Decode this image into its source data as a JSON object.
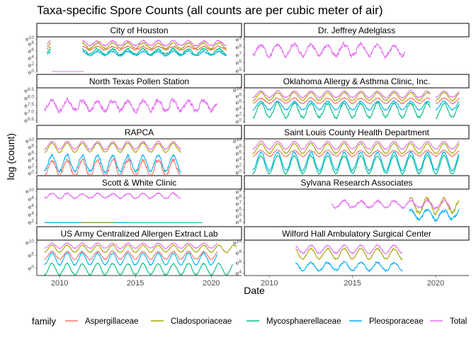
{
  "chart_data": {
    "type": "line",
    "title": "Taxa-specific Spore Counts (all counts are per cubic meter of air)",
    "xlabel": "Date",
    "ylabel": "log (count)",
    "x_range": [
      "2008-07-01",
      "2021-12-31"
    ],
    "x_ticks": [
      "2010",
      "2015",
      "2020"
    ],
    "legend": {
      "title": "family",
      "position": "bottom",
      "entries": [
        {
          "name": "Aspergillaceae",
          "color": "#F8766D"
        },
        {
          "name": "Cladosporiaceae",
          "color": "#A3A500"
        },
        {
          "name": "Mycosphaerellaceae",
          "color": "#00BF7D"
        },
        {
          "name": "Pleosporaceae",
          "color": "#00B0F6"
        },
        {
          "name": "Total",
          "color": "#E76BF3"
        }
      ]
    },
    "series_names": [
      "Aspergillaceae",
      "Cladosporiaceae",
      "Mycosphaerellaceae",
      "Pleosporaceae",
      "Total"
    ],
    "panels": [
      {
        "title": "City of Houston",
        "y_ticks": [
          "e^10",
          "e^8",
          "e^6",
          "e^4",
          "e^2",
          "e^0"
        ],
        "ylim": [
          0,
          10
        ],
        "series": [
          {
            "name": "Total",
            "segments": [
              [
                "2009-03-01",
                "2009-06-01"
              ],
              [
                "2011-07-01",
                "2021-01-01"
              ]
            ],
            "level": 8.2,
            "amp": 0.7,
            "period": 1,
            "noise": 0.4
          },
          {
            "name": "Cladosporiaceae",
            "segments": [
              [
                "2009-03-01",
                "2009-06-01"
              ],
              [
                "2011-07-01",
                "2021-01-01"
              ]
            ],
            "level": 7.5,
            "amp": 0.8,
            "period": 1,
            "noise": 0.4
          },
          {
            "name": "Aspergillaceae",
            "segments": [
              [
                "2009-03-01",
                "2009-06-01"
              ],
              [
                "2011-07-01",
                "2021-01-01"
              ]
            ],
            "level": 6.8,
            "amp": 0.5,
            "period": 1,
            "noise": 0.4
          },
          {
            "name": "Mycosphaerellaceae",
            "segments": [
              [
                "2009-03-01",
                "2009-06-01"
              ],
              [
                "2011-07-01",
                "2021-01-01"
              ]
            ],
            "level": 5.8,
            "amp": 0.8,
            "period": 1,
            "noise": 0.5
          },
          {
            "name": "Pleosporaceae",
            "segments": [
              [
                "2009-03-01",
                "2009-06-01"
              ],
              [
                "2011-07-01",
                "2021-01-01"
              ]
            ],
            "level": 5.3,
            "amp": 0.6,
            "period": 1,
            "noise": 0.4
          },
          {
            "name": "Total",
            "segments": [
              [
                "2009-07-01",
                "2011-08-01"
              ]
            ],
            "level": 0.2,
            "amp": 0,
            "period": 1,
            "noise": 0
          }
        ]
      },
      {
        "title": "Dr. Jeffrey Adelglass",
        "y_ticks": [
          "e^9",
          "e^8",
          "e^7",
          "e^6",
          "e^5"
        ],
        "ylim": [
          4.8,
          9.3
        ],
        "series": [
          {
            "name": "Total",
            "segments": [
              [
                "2009-01-01",
                "2018-03-01"
              ]
            ],
            "level": 7.6,
            "amp": 0.7,
            "period": 1,
            "noise": 0.5
          }
        ]
      },
      {
        "title": "North Texas Pollen Station",
        "y_ticks": [
          "e^8.5",
          "e^8.0",
          "e^7.5",
          "e^7.0",
          "e^6.5"
        ],
        "ylim": [
          6.3,
          8.7
        ],
        "series": [
          {
            "name": "Total",
            "segments": [
              [
                "2009-01-01",
                "2020-06-01"
              ]
            ],
            "level": 7.5,
            "amp": 0.35,
            "period": 1,
            "noise": 0.3
          }
        ]
      },
      {
        "title": "Oklahoma Allergy & Asthma Clinic, Inc.",
        "y_ticks": [
          "e^10",
          "e^8",
          "e^6",
          "e^4",
          "e^2",
          "e^0"
        ],
        "ylim": [
          -0.5,
          10.5
        ],
        "series": [
          {
            "name": "Total",
            "segments": [
              [
                "2009-01-01",
                "2019-09-01"
              ],
              [
                "2020-01-01",
                "2021-06-01"
              ]
            ],
            "level": 8.5,
            "amp": 1.0,
            "period": 1,
            "noise": 0.3
          },
          {
            "name": "Cladosporiaceae",
            "segments": [
              [
                "2009-01-01",
                "2019-09-01"
              ],
              [
                "2020-01-01",
                "2021-06-01"
              ]
            ],
            "level": 7.8,
            "amp": 1.2,
            "period": 1,
            "noise": 0.3
          },
          {
            "name": "Aspergillaceae",
            "segments": [
              [
                "2009-01-01",
                "2019-09-01"
              ],
              [
                "2020-01-01",
                "2021-06-01"
              ]
            ],
            "level": 6.5,
            "amp": 0.8,
            "period": 1,
            "noise": 0.4
          },
          {
            "name": "Pleosporaceae",
            "segments": [
              [
                "2009-01-01",
                "2019-09-01"
              ],
              [
                "2020-01-01",
                "2021-06-01"
              ]
            ],
            "level": 5.0,
            "amp": 1.3,
            "period": 1,
            "noise": 0.4
          },
          {
            "name": "Mycosphaerellaceae",
            "segments": [
              [
                "2009-01-01",
                "2019-09-01"
              ],
              [
                "2020-01-01",
                "2021-06-01"
              ]
            ],
            "level": 3.5,
            "amp": 2.2,
            "period": 1,
            "noise": 0.7
          }
        ]
      },
      {
        "title": "RAPCA",
        "y_ticks": [
          "e^10",
          "e^8",
          "e^6",
          "e^4",
          "e^2",
          "e^0"
        ],
        "ylim": [
          -0.3,
          10.5
        ],
        "series": [
          {
            "name": "Total",
            "segments": [
              [
                "2009-01-01",
                "2018-01-01"
              ]
            ],
            "level": 8.5,
            "amp": 1.2,
            "period": 1,
            "noise": 0.3
          },
          {
            "name": "Cladosporiaceae",
            "segments": [
              [
                "2009-01-01",
                "2018-01-01"
              ]
            ],
            "level": 7.8,
            "amp": 1.4,
            "period": 1,
            "noise": 0.3
          },
          {
            "name": "Aspergillaceae",
            "segments": [
              [
                "2009-01-01",
                "2018-01-01"
              ]
            ],
            "level": 1.5,
            "amp": 2.5,
            "period": 1,
            "noise": 1.2
          },
          {
            "name": "Pleosporaceae",
            "segments": [
              [
                "2009-01-01",
                "2018-01-01"
              ]
            ],
            "level": 3.0,
            "amp": 2.5,
            "period": 1,
            "noise": 0.8
          }
        ]
      },
      {
        "title": "Saint Louis County Health Department",
        "y_ticks": [
          "e^10",
          "e^8",
          "e^6",
          "e^4",
          "e^2",
          "e^0"
        ],
        "ylim": [
          -0.5,
          10.5
        ],
        "series": [
          {
            "name": "Total",
            "segments": [
              [
                "2009-01-01",
                "2021-06-01"
              ]
            ],
            "level": 8.5,
            "amp": 1.2,
            "period": 1,
            "noise": 0.3
          },
          {
            "name": "Cladosporiaceae",
            "segments": [
              [
                "2009-01-01",
                "2021-06-01"
              ]
            ],
            "level": 7.5,
            "amp": 1.5,
            "period": 1,
            "noise": 0.3
          },
          {
            "name": "Aspergillaceae",
            "segments": [
              [
                "2009-01-01",
                "2021-06-01"
              ]
            ],
            "level": 6.0,
            "amp": 0.9,
            "period": 1,
            "noise": 0.4
          },
          {
            "name": "Mycosphaerellaceae",
            "segments": [
              [
                "2009-01-01",
                "2021-06-01"
              ]
            ],
            "level": 2.5,
            "amp": 2.8,
            "period": 1,
            "noise": 0.5
          },
          {
            "name": "Pleosporaceae",
            "segments": [
              [
                "2009-01-01",
                "2021-06-01"
              ]
            ],
            "level": 3.5,
            "amp": 2.8,
            "period": 1,
            "noise": 0.5
          }
        ]
      },
      {
        "title": "Scott & White Clinic",
        "y_ticks": [
          "e^10",
          "e^8",
          "e^6",
          "e^4",
          "e^2"
        ],
        "ylim": [
          1.5,
          10.5
        ],
        "series": [
          {
            "name": "Total",
            "segments": [
              [
                "2009-01-01",
                "2018-01-01"
              ]
            ],
            "level": 8.8,
            "amp": 0.6,
            "period": 1,
            "noise": 0.4
          },
          {
            "name": "Mycosphaerellaceae",
            "segments": [
              [
                "2009-01-01",
                "2019-06-01"
              ]
            ],
            "level": 2.0,
            "amp": 0,
            "period": 1,
            "noise": 0
          },
          {
            "name": "Pleosporaceae",
            "segments": [
              [
                "2009-01-01",
                "2014-07-01"
              ]
            ],
            "level": 2.0,
            "amp": 0,
            "period": 1,
            "noise": 0
          },
          {
            "name": "Cladosporiaceae",
            "segments": [
              [
                "2011-06-01",
                "2013-09-01"
              ]
            ],
            "level": 2.0,
            "amp": 0,
            "period": 1,
            "noise": 0
          }
        ]
      },
      {
        "title": "Sylvana Research Associates",
        "y_ticks": [
          "e^9",
          "e^8",
          "e^7",
          "e^6",
          "e^5",
          "e^4"
        ],
        "ylim": [
          3.6,
          9.4
        ],
        "series": [
          {
            "name": "Cladosporiaceae",
            "segments": [
              [
                "2018-06-01",
                "2021-06-01"
              ]
            ],
            "level": 6.7,
            "amp": 1.2,
            "period": 1,
            "noise": 0.5
          },
          {
            "name": "Total",
            "segments": [
              [
                "2013-10-01",
                "2020-12-01"
              ]
            ],
            "level": 6.9,
            "amp": 0.6,
            "period": 1,
            "noise": 0.4
          },
          {
            "name": "Pleosporaceae",
            "segments": [
              [
                "2018-06-01",
                "2021-06-01"
              ]
            ],
            "level": 5.2,
            "amp": 0.8,
            "period": 1,
            "noise": 0.5
          }
        ]
      },
      {
        "title": "US Army Centralized Allergen Extract Lab",
        "y_ticks": [
          "e^10",
          "e^5",
          "e^0"
        ],
        "ylim": [
          -3,
          11
        ],
        "series": [
          {
            "name": "Total",
            "segments": [
              [
                "2009-01-01",
                "2020-06-01"
              ]
            ],
            "level": 8.8,
            "amp": 1.0,
            "period": 1,
            "noise": 0.3
          },
          {
            "name": "Cladosporiaceae",
            "segments": [
              [
                "2009-01-01",
                "2021-09-01"
              ]
            ],
            "level": 7.6,
            "amp": 1.4,
            "period": 1,
            "noise": 0.3
          },
          {
            "name": "Aspergillaceae",
            "segments": [
              [
                "2009-01-01",
                "2020-06-01"
              ]
            ],
            "level": 5.0,
            "amp": 1.5,
            "period": 1,
            "noise": 0.5
          },
          {
            "name": "Pleosporaceae",
            "segments": [
              [
                "2009-01-01",
                "2020-06-01"
              ]
            ],
            "level": 3.5,
            "amp": 2.3,
            "period": 1,
            "noise": 0.5
          },
          {
            "name": "Mycosphaerellaceae",
            "segments": [
              [
                "2009-01-01",
                "2021-06-01"
              ]
            ],
            "level": -0.5,
            "amp": 2.2,
            "period": 1,
            "noise": 0.5
          }
        ]
      },
      {
        "title": "Wilford Hall Ambulatory Surgical Center",
        "y_ticks": [
          "e^10",
          "e^8",
          "e^6",
          "e^4"
        ],
        "ylim": [
          3.5,
          10.5
        ],
        "series": [
          {
            "name": "Total",
            "segments": [
              [
                "2011-08-01",
                "2018-01-01"
              ]
            ],
            "level": 8.7,
            "amp": 0.8,
            "period": 1,
            "noise": 0.3
          },
          {
            "name": "Cladosporiaceae",
            "segments": [
              [
                "2011-08-01",
                "2018-01-01"
              ]
            ],
            "level": 7.8,
            "amp": 1.0,
            "period": 1,
            "noise": 0.3
          },
          {
            "name": "Pleosporaceae",
            "segments": [
              [
                "2011-08-01",
                "2018-01-01"
              ]
            ],
            "level": 5.3,
            "amp": 0.8,
            "period": 1,
            "noise": 0.4
          }
        ]
      }
    ]
  }
}
